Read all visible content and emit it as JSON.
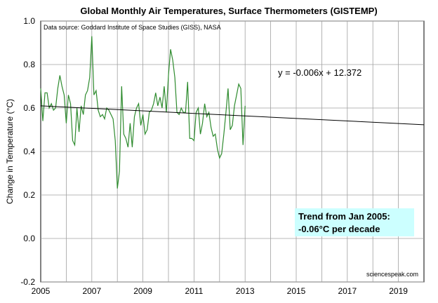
{
  "chart_data": {
    "type": "line",
    "title": "Global Monthly Air Temperatures, Surface Thermometers (GISTEMP)",
    "source_note": "Data source: Goddard Institute of Space Studies (GISS), NASA",
    "ylabel": "Change  in Temperature  (°C)",
    "xlabel": "",
    "xlim": [
      2005,
      2020
    ],
    "ylim": [
      -0.2,
      1.0
    ],
    "x_ticks": [
      "2005",
      "2007",
      "2009",
      "2011",
      "2013",
      "2015",
      "2017",
      "2019"
    ],
    "x_tick_values": [
      2005,
      2007,
      2009,
      2011,
      2013,
      2015,
      2017,
      2019
    ],
    "y_ticks": [
      "-0.2",
      "0.0",
      "0.2",
      "0.4",
      "0.6",
      "0.8",
      "1.0"
    ],
    "y_tick_values": [
      -0.2,
      0.0,
      0.2,
      0.4,
      0.6,
      0.8,
      1.0
    ],
    "grid": true,
    "series": [
      {
        "color": "#2e8b2e",
        "x_start": 2005.0,
        "x_step": 0.0833333,
        "values": [
          0.69,
          0.54,
          0.67,
          0.67,
          0.6,
          0.62,
          0.59,
          0.6,
          0.69,
          0.75,
          0.7,
          0.66,
          0.53,
          0.66,
          0.62,
          0.45,
          0.43,
          0.6,
          0.49,
          0.61,
          0.57,
          0.66,
          0.68,
          0.74,
          0.93,
          0.66,
          0.68,
          0.59,
          0.56,
          0.57,
          0.55,
          0.6,
          0.59,
          0.57,
          0.55,
          0.45,
          0.23,
          0.31,
          0.7,
          0.48,
          0.46,
          0.42,
          0.53,
          0.42,
          0.56,
          0.6,
          0.62,
          0.52,
          0.57,
          0.48,
          0.5,
          0.58,
          0.59,
          0.62,
          0.67,
          0.61,
          0.65,
          0.6,
          0.7,
          0.58,
          0.75,
          0.87,
          0.82,
          0.74,
          0.58,
          0.57,
          0.6,
          0.58,
          0.58,
          0.72,
          0.46,
          0.46,
          0.45,
          0.58,
          0.6,
          0.48,
          0.53,
          0.62,
          0.56,
          0.58,
          0.51,
          0.47,
          0.48,
          0.41,
          0.37,
          0.39,
          0.48,
          0.58,
          0.69,
          0.5,
          0.52,
          0.61,
          0.66,
          0.71,
          0.69,
          0.43,
          0.61
        ]
      }
    ],
    "trendline": {
      "color": "#000000",
      "x": [
        2005,
        2020
      ],
      "y": [
        0.61,
        0.523
      ],
      "equation": "y = -0.006x + 12.372"
    },
    "annotation_box": {
      "line1": "Trend from Jan 2005:",
      "line2": "-0.06°C per decade",
      "background": "#ccffff"
    },
    "watermark": "sciencespeak.com"
  }
}
